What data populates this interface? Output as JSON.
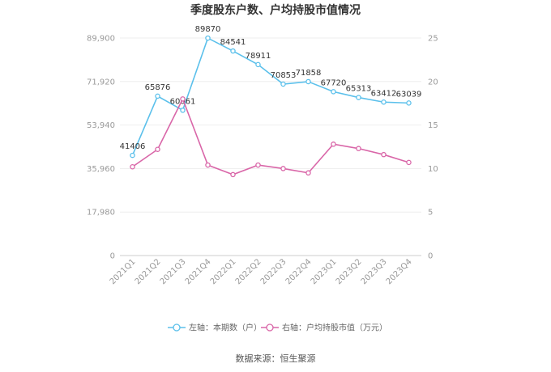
{
  "chart_data": {
    "type": "line",
    "title": "季度股东户数、户均持股市值情况",
    "categories": [
      "2021Q1",
      "2021Q2",
      "2021Q3",
      "2021Q4",
      "2022Q1",
      "2022Q2",
      "2022Q3",
      "2022Q4",
      "2023Q1",
      "2023Q2",
      "2023Q3",
      "2023Q4"
    ],
    "left_axis": {
      "ticks": [
        "0",
        "17,980",
        "35,960",
        "53,940",
        "71,920",
        "89,900"
      ],
      "ylim": [
        0,
        89900
      ]
    },
    "right_axis": {
      "ticks": [
        "0",
        "5",
        "10",
        "15",
        "20",
        "25"
      ],
      "ylim": [
        0,
        25
      ]
    },
    "series": [
      {
        "name": "左轴：本期数（户）",
        "axis": "left",
        "color": "#5bc0eb",
        "values": [
          41406,
          65876,
          60061,
          89870,
          84541,
          78911,
          70853,
          71858,
          67720,
          65313,
          63412,
          63039
        ],
        "labels": [
          "41406",
          "65876",
          "60061",
          "89870",
          "84541",
          "78911",
          "70853",
          "71858",
          "67720",
          "65313",
          "63412",
          "63039"
        ]
      },
      {
        "name": "右轴：户均持股市值（万元）",
        "axis": "right",
        "color": "#d966a8",
        "values": [
          10.2,
          12.2,
          18.0,
          10.4,
          9.3,
          10.4,
          10.0,
          9.5,
          12.8,
          12.3,
          11.6,
          10.7
        ]
      }
    ],
    "grid": true,
    "legend_position": "bottom"
  },
  "source_text": "数据来源：恒生聚源"
}
